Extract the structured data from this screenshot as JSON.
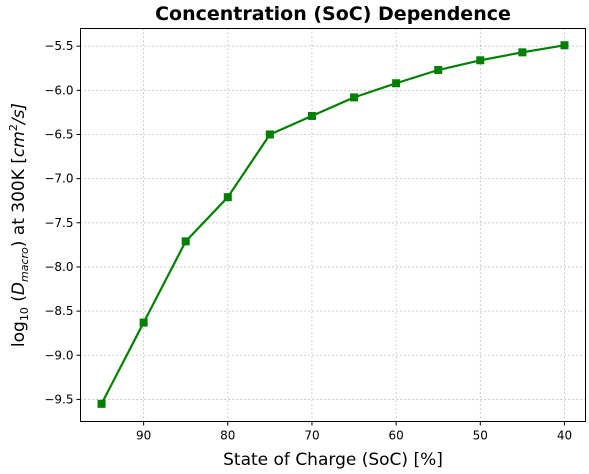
{
  "chart_data": {
    "type": "line",
    "title": "Concentration (SoC) Dependence",
    "xlabel": "State of Charge (SoC) [%]",
    "ylabel_parts": {
      "log": "log",
      "log_sub": "10",
      "open": "(",
      "var": "D",
      "var_sub": "macro",
      "close": ") at 300K [",
      "unit": "cm",
      "unit_sup": "2",
      "unit_tail": "/s]"
    },
    "x_reversed": true,
    "xlim": [
      97.5,
      37.5
    ],
    "ylim": [
      -9.75,
      -5.3
    ],
    "x_ticks": [
      90,
      80,
      70,
      60,
      50,
      40
    ],
    "x_tick_labels": [
      "90",
      "80",
      "70",
      "60",
      "50",
      "40"
    ],
    "y_ticks": [
      -9.5,
      -9.0,
      -8.5,
      -8.0,
      -7.5,
      -7.0,
      -6.5,
      -6.0,
      -5.5
    ],
    "y_tick_labels": [
      "−9.5",
      "−9.0",
      "−8.5",
      "−8.0",
      "−7.5",
      "−7.0",
      "−6.5",
      "−6.0",
      "−5.5"
    ],
    "grid": true,
    "series": [
      {
        "color": "#008000",
        "marker": "square",
        "x": [
          95,
          90,
          85,
          80,
          75,
          70,
          65,
          60,
          55,
          50,
          45,
          40
        ],
        "y": [
          -9.55,
          -8.63,
          -7.71,
          -7.21,
          -6.5,
          -6.29,
          -6.08,
          -5.92,
          -5.77,
          -5.66,
          -5.57,
          -5.49
        ]
      }
    ]
  }
}
